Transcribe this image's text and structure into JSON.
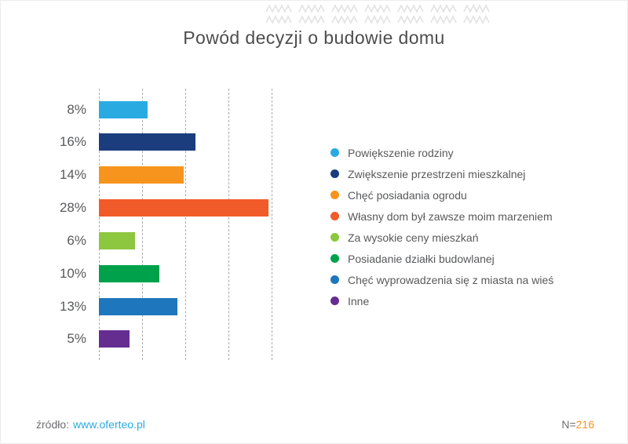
{
  "chart_data": {
    "type": "bar",
    "orientation": "horizontal",
    "title": "Powód decyzji o budowie domu",
    "categories": [
      "Powiększenie rodziny",
      "Zwiększenie przestrzeni mieszkalnej",
      "Chęć posiadania ogrodu",
      "Własny dom był zawsze moim marzeniem",
      "Za wysokie ceny mieszkań",
      "Posiadanie działki budowlanej",
      "Chęć wyprowadzenia się z miasta na wieś",
      "Inne"
    ],
    "values": [
      8,
      16,
      14,
      28,
      6,
      10,
      13,
      5
    ],
    "value_labels": [
      "8%",
      "16%",
      "14%",
      "28%",
      "6%",
      "10%",
      "13%",
      "5%"
    ],
    "colors": [
      "#29abe2",
      "#1b3d7d",
      "#f7941e",
      "#f15a29",
      "#8dc63f",
      "#00a14b",
      "#1e76bd",
      "#662d91"
    ],
    "xlim": [
      0,
      28
    ],
    "grid": "dashed-vertical-lines",
    "value_axis_hidden": true,
    "legend_position": "right"
  },
  "footer": {
    "source_prefix": "źródło:",
    "source_link": "www.oferteo.pl",
    "n_prefix": "N=",
    "n_value": "216"
  }
}
